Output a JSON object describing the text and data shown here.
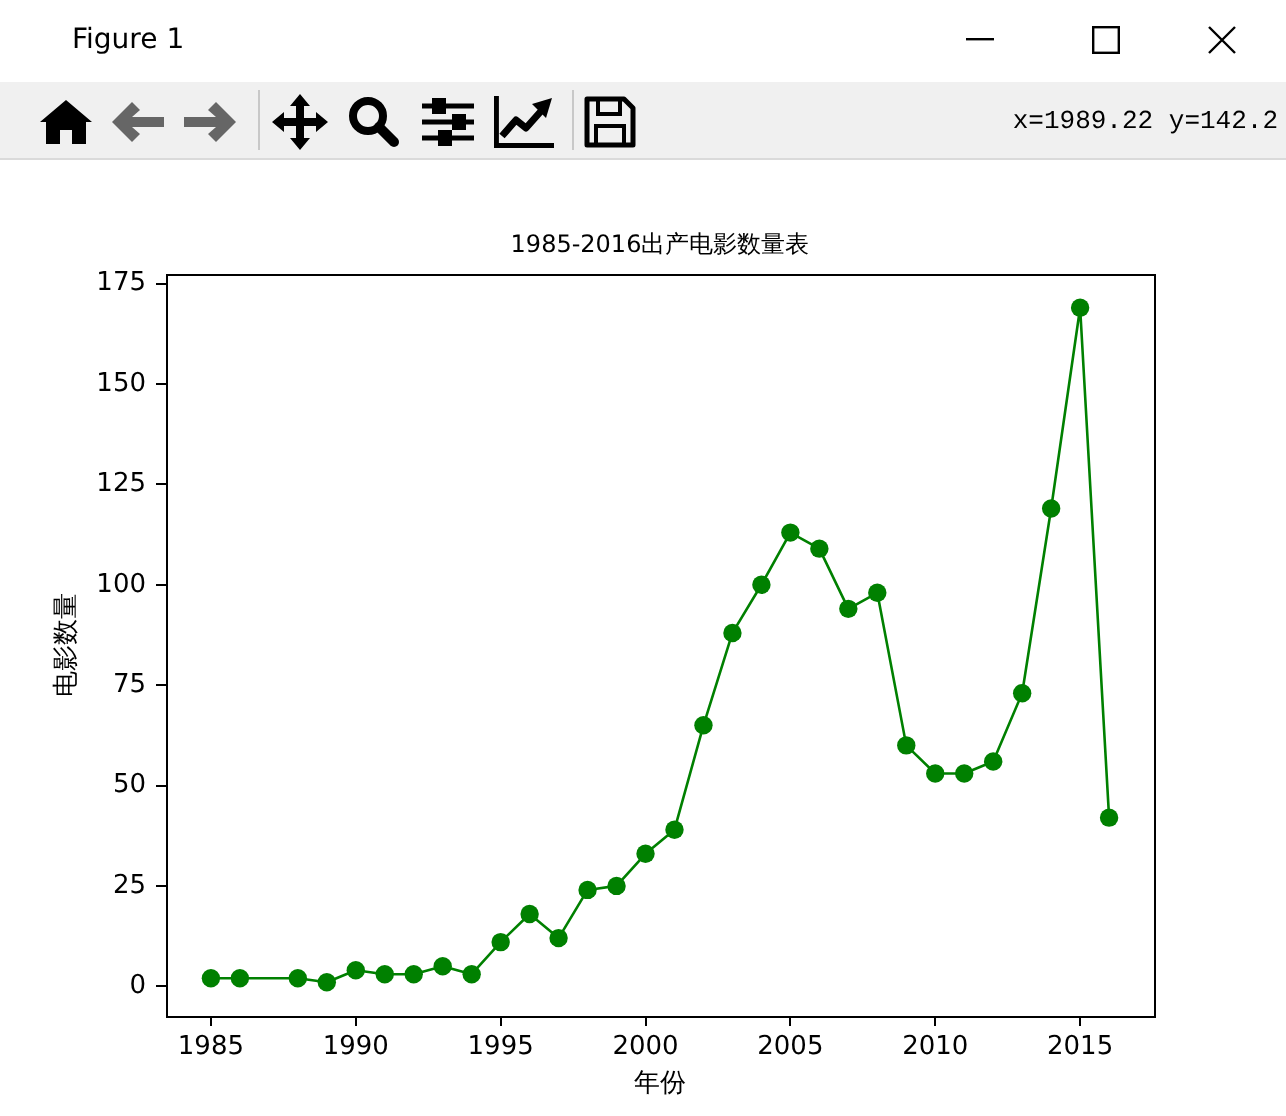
{
  "chart_data": {
    "type": "line",
    "title": "1985-2016出产电影数量表",
    "xlabel": "年份",
    "ylabel": "电影数量",
    "x": [
      1985,
      1986,
      1988,
      1989,
      1990,
      1991,
      1992,
      1993,
      1994,
      1995,
      1996,
      1997,
      1998,
      1999,
      2000,
      2001,
      2002,
      2003,
      2004,
      2005,
      2006,
      2007,
      2008,
      2009,
      2010,
      2011,
      2012,
      2013,
      2014,
      2015,
      2016
    ],
    "values": [
      2,
      2,
      2,
      1,
      4,
      3,
      3,
      5,
      3,
      11,
      18,
      12,
      24,
      25,
      33,
      39,
      65,
      88,
      100,
      113,
      109,
      94,
      98,
      60,
      53,
      53,
      56,
      73,
      119,
      169,
      42
    ],
    "color": "#008000",
    "marker": "circle",
    "line_style": "solid",
    "xlim": [
      1983.45,
      2017.55
    ],
    "ylim": [
      -7.4,
      177.4
    ],
    "xticks": [
      1985,
      1990,
      1995,
      2000,
      2005,
      2010,
      2015
    ],
    "yticks": [
      0,
      25,
      50,
      75,
      100,
      125,
      150,
      175
    ],
    "annotations": [
      "Figure 1",
      "x=1989.22 y=142.2"
    ]
  }
}
